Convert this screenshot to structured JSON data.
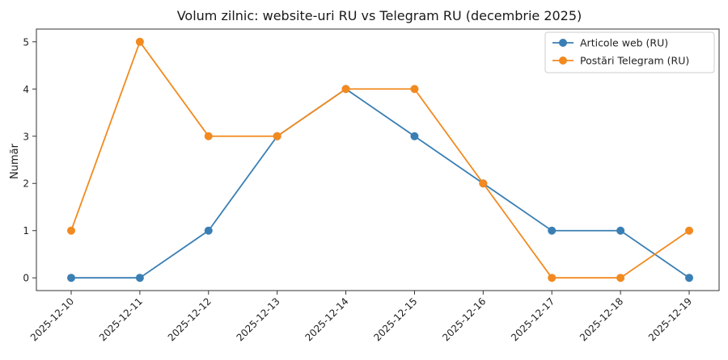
{
  "chart_data": {
    "type": "line",
    "title": "Volum zilnic: website-uri RU vs Telegram RU (decembrie 2025)",
    "xlabel": "",
    "ylabel": "Număr",
    "categories": [
      "2025-12-10",
      "2025-12-11",
      "2025-12-12",
      "2025-12-13",
      "2025-12-14",
      "2025-12-15",
      "2025-12-16",
      "2025-12-17",
      "2025-12-18",
      "2025-12-19"
    ],
    "yticks": [
      "0",
      "1",
      "2",
      "3",
      "4",
      "5"
    ],
    "ylim": [
      -0.27,
      5.27
    ],
    "grid": false,
    "legend_position": "top-right",
    "series": [
      {
        "name": "Articole web (RU)",
        "values": [
          0,
          0,
          1,
          3,
          4,
          3,
          2,
          1,
          1,
          0
        ],
        "color": "#3a7fb4"
      },
      {
        "name": "Postări Telegram (RU)",
        "values": [
          1,
          5,
          3,
          3,
          4,
          4,
          2,
          0,
          0,
          1
        ],
        "color": "#f28a1f"
      }
    ]
  }
}
